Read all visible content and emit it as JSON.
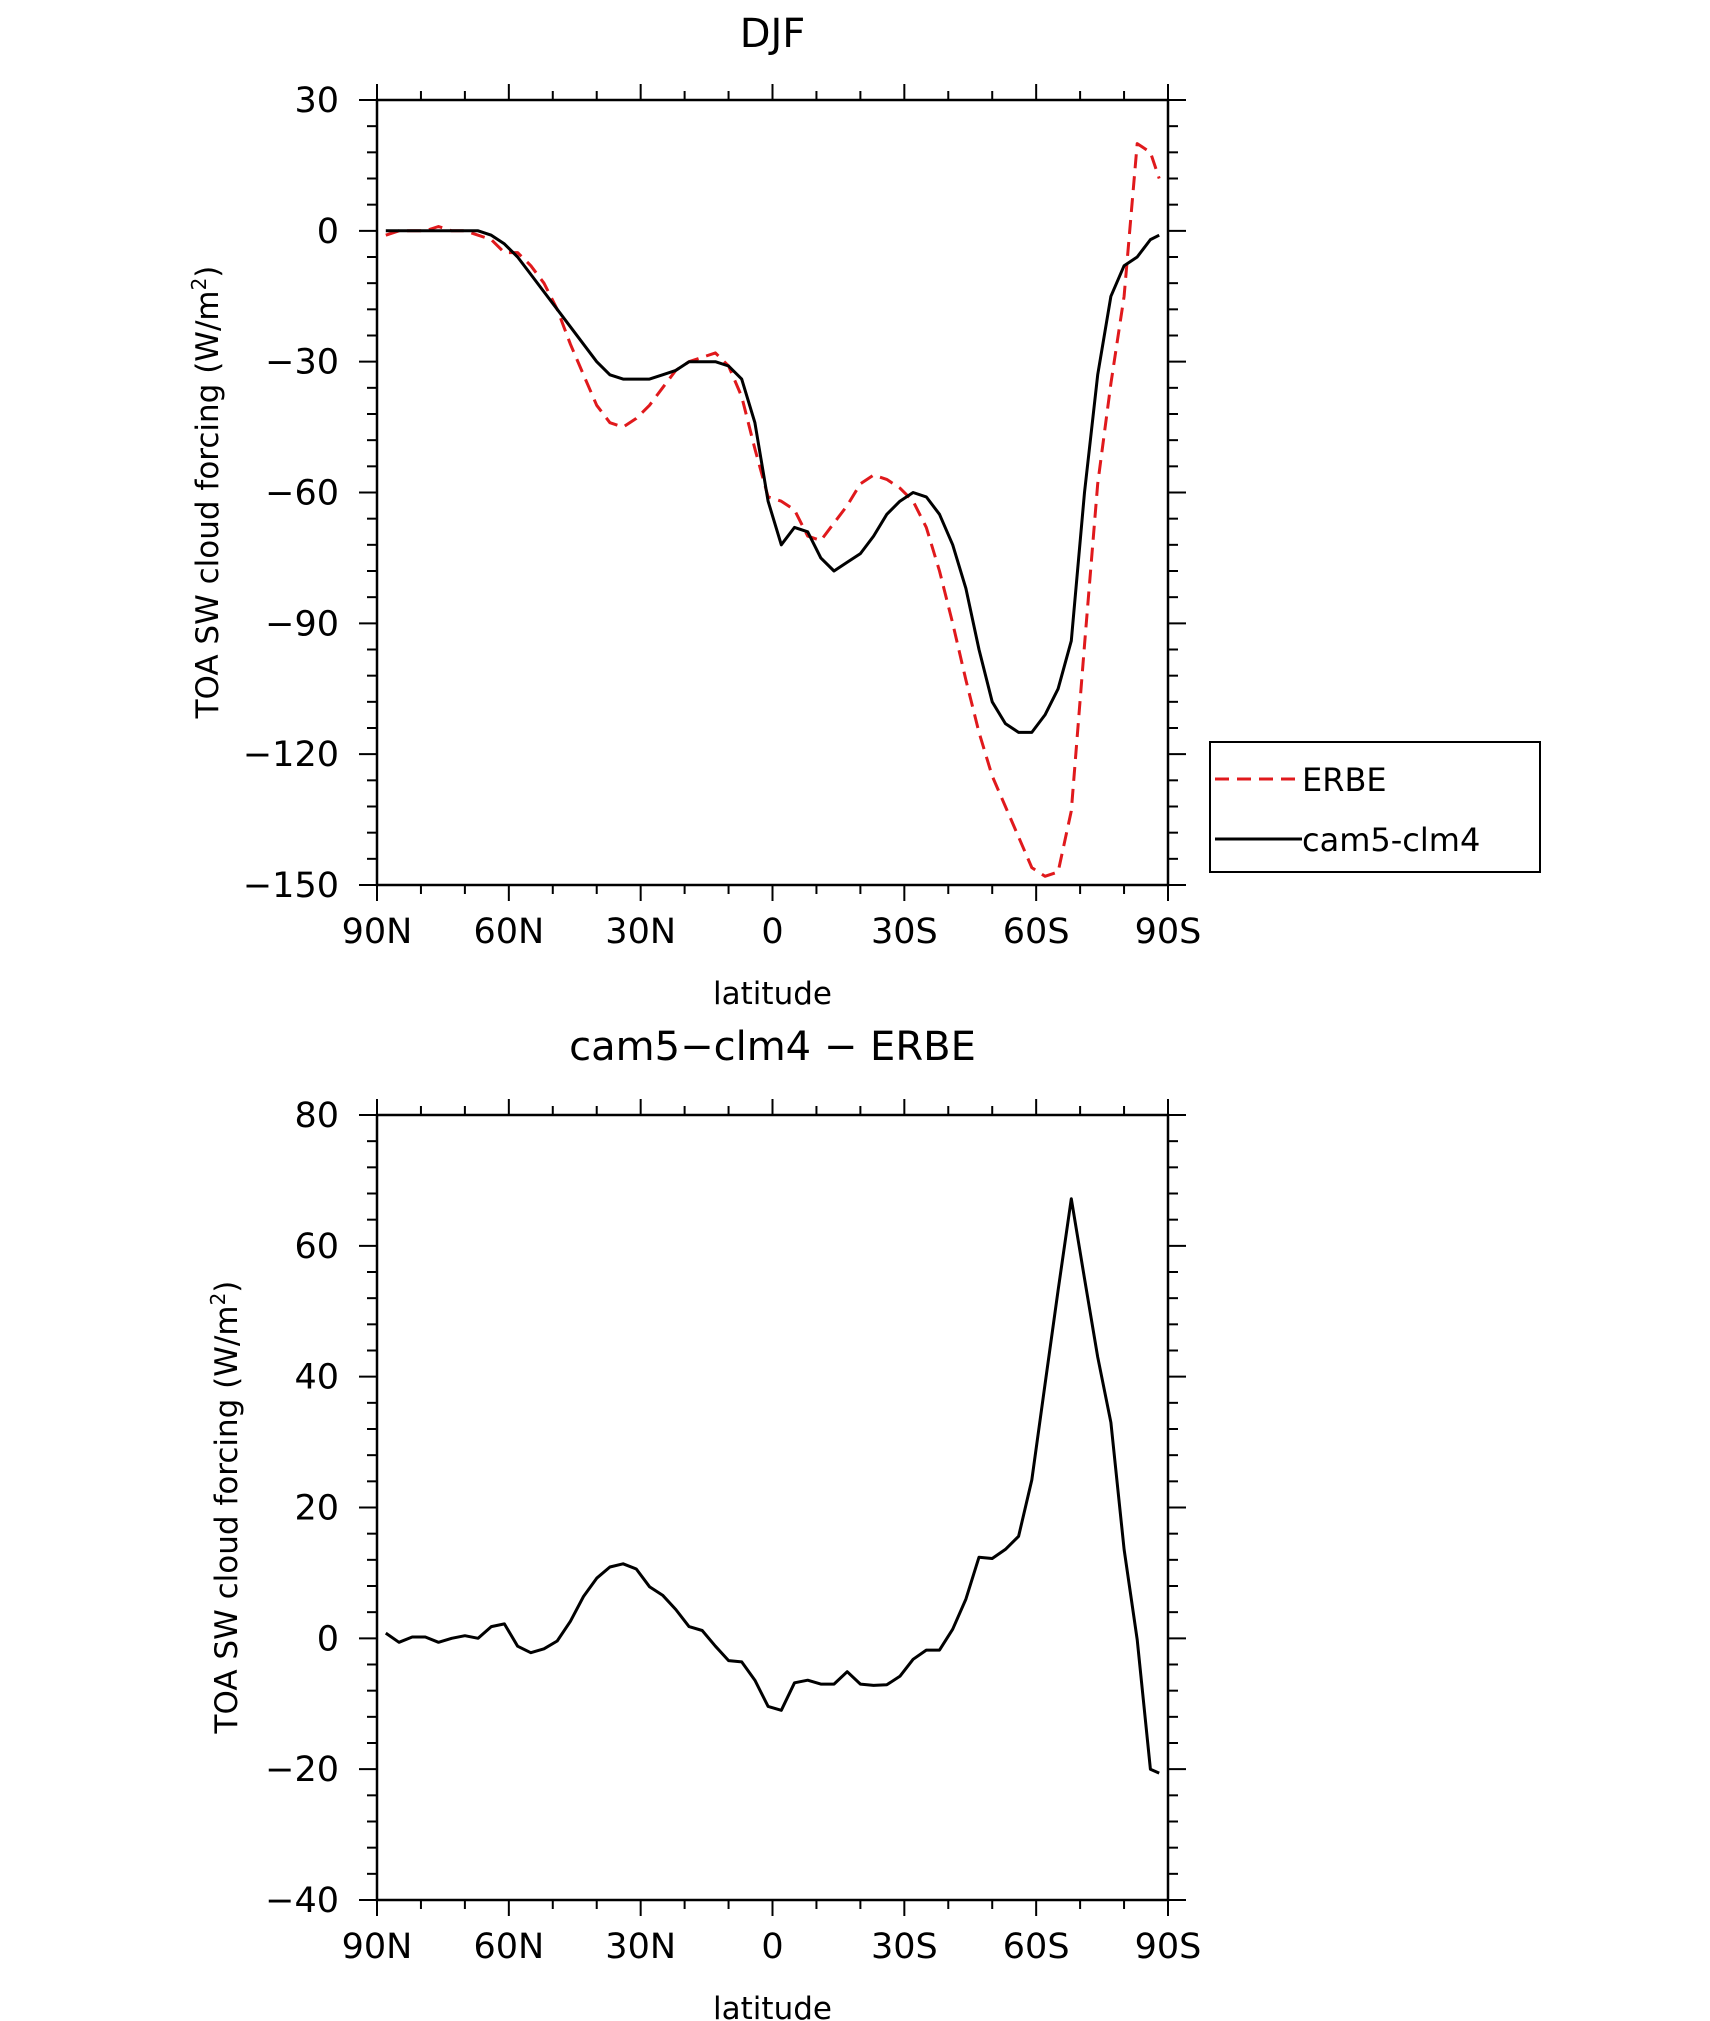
{
  "chart_data": [
    {
      "type": "line",
      "title": "DJF",
      "xlabel": "latitude",
      "ylabel": "TOA SW cloud forcing (W/m²)",
      "ylabel_parts": [
        "TOA SW cloud forcing (W/m",
        "2",
        ")"
      ],
      "x_ticks": [
        {
          "value": 90,
          "label": "90N"
        },
        {
          "value": 60,
          "label": "60N"
        },
        {
          "value": 30,
          "label": "30N"
        },
        {
          "value": 0,
          "label": "0"
        },
        {
          "value": -30,
          "label": "30S"
        },
        {
          "value": -60,
          "label": "60S"
        },
        {
          "value": -90,
          "label": "90S"
        }
      ],
      "y_ticks": [
        {
          "value": 30,
          "label": "30"
        },
        {
          "value": 0,
          "label": "0"
        },
        {
          "value": -30,
          "label": "−30"
        },
        {
          "value": -60,
          "label": "−60"
        },
        {
          "value": -90,
          "label": "−90"
        },
        {
          "value": -120,
          "label": "−120"
        },
        {
          "value": -150,
          "label": "−150"
        }
      ],
      "xlim": [
        90,
        -90
      ],
      "ylim": [
        -150,
        30
      ],
      "legend": {
        "position": "right"
      },
      "series": [
        {
          "name": "ERBE",
          "color": "#e0191c",
          "dash": "dashed",
          "x": [
            88,
            85,
            82,
            79,
            76,
            73,
            70,
            67,
            64,
            61,
            58,
            55,
            52,
            49,
            46,
            43,
            40,
            37,
            34,
            31,
            28,
            25,
            22,
            19,
            16,
            13,
            10,
            7,
            4,
            1,
            -2,
            -5,
            -8,
            -11,
            -14,
            -17,
            -20,
            -23,
            -26,
            -29,
            -32,
            -35,
            -38,
            -41,
            -44,
            -47,
            -50,
            -53,
            -56,
            -59,
            -62,
            -65,
            -68,
            -71,
            -74,
            -77,
            -80,
            -83,
            -86,
            -88
          ],
          "values": [
            -1,
            0,
            0,
            0,
            1,
            0,
            0,
            -1,
            -2,
            -5,
            -5,
            -8,
            -12,
            -18,
            -26,
            -33,
            -40,
            -44,
            -45,
            -43,
            -40,
            -36,
            -32,
            -30,
            -29,
            -28,
            -31,
            -38,
            -50,
            -61,
            -62,
            -64,
            -70,
            -71,
            -67,
            -63,
            -58,
            -56,
            -57,
            -59,
            -62,
            -68,
            -78,
            -90,
            -103,
            -115,
            -125,
            -132,
            -139,
            -146,
            -148,
            -147,
            -133,
            -95,
            -58,
            -35,
            -15,
            20,
            18,
            12
          ]
        },
        {
          "name": "cam5-clm4",
          "color": "#000000",
          "dash": "solid",
          "x": [
            88,
            85,
            82,
            79,
            76,
            73,
            70,
            67,
            64,
            61,
            58,
            55,
            52,
            49,
            46,
            43,
            40,
            37,
            34,
            31,
            28,
            25,
            22,
            19,
            16,
            13,
            10,
            7,
            4,
            1,
            -2,
            -5,
            -8,
            -11,
            -14,
            -17,
            -20,
            -23,
            -26,
            -29,
            -32,
            -35,
            -38,
            -41,
            -44,
            -47,
            -50,
            -53,
            -56,
            -59,
            -62,
            -65,
            -68,
            -71,
            -74,
            -77,
            -80,
            -83,
            -86,
            -88
          ],
          "values": [
            0,
            0,
            0,
            0,
            0,
            0,
            0,
            0,
            -1,
            -3,
            -6,
            -10,
            -14,
            -18,
            -22,
            -26,
            -30,
            -33,
            -34,
            -34,
            -34,
            -33,
            -32,
            -30,
            -30,
            -30,
            -31,
            -34,
            -44,
            -62,
            -72,
            -68,
            -69,
            -75,
            -78,
            -76,
            -74,
            -70,
            -65,
            -62,
            -60,
            -61,
            -65,
            -72,
            -82,
            -96,
            -108,
            -113,
            -115,
            -115,
            -111,
            -105,
            -94,
            -60,
            -33,
            -15,
            -8,
            -6,
            -2,
            -1
          ]
        }
      ]
    },
    {
      "type": "line",
      "title": "cam5−clm4 − ERBE",
      "xlabel": "latitude",
      "ylabel": "TOA SW cloud forcing (W/m²)",
      "ylabel_parts": [
        "TOA SW cloud forcing (W/m",
        "2",
        ")"
      ],
      "x_ticks": [
        {
          "value": 90,
          "label": "90N"
        },
        {
          "value": 60,
          "label": "60N"
        },
        {
          "value": 30,
          "label": "30N"
        },
        {
          "value": 0,
          "label": "0"
        },
        {
          "value": -30,
          "label": "30S"
        },
        {
          "value": -60,
          "label": "60S"
        },
        {
          "value": -90,
          "label": "90S"
        }
      ],
      "y_ticks": [
        {
          "value": 80,
          "label": "80"
        },
        {
          "value": 60,
          "label": "60"
        },
        {
          "value": 40,
          "label": "40"
        },
        {
          "value": 20,
          "label": "20"
        },
        {
          "value": 0,
          "label": "0"
        },
        {
          "value": -20,
          "label": "−20"
        },
        {
          "value": -40,
          "label": "−40"
        }
      ],
      "xlim": [
        90,
        -90
      ],
      "ylim": [
        -40,
        80
      ],
      "series": [
        {
          "name": "",
          "color": "#000000",
          "dash": "solid",
          "x": [
            88,
            85,
            82,
            79,
            76,
            73,
            70,
            67,
            64,
            61,
            58,
            55,
            52,
            49,
            46,
            43,
            40,
            37,
            34,
            31,
            28,
            25,
            22,
            19,
            16,
            13,
            10,
            7,
            4,
            1,
            -2,
            -5,
            -8,
            -11,
            -14,
            -17,
            -20,
            -23,
            -26,
            -29,
            -32,
            -35,
            -38,
            -41,
            -44,
            -47,
            -50,
            -53,
            -56,
            -59,
            -62,
            -65,
            -68,
            -71,
            -74,
            -77,
            -80,
            -83,
            -86,
            -88
          ],
          "values": [
            0.8,
            -0.6,
            0.2,
            0.2,
            -0.6,
            0.0,
            0.4,
            0.0,
            1.8,
            2.2,
            -1.2,
            -2.2,
            -1.6,
            -0.4,
            2.6,
            6.4,
            9.2,
            10.9,
            11.4,
            10.6,
            7.9,
            6.6,
            4.4,
            1.8,
            1.2,
            -1.2,
            -3.4,
            -3.6,
            -6.4,
            -10.4,
            -11.0,
            -6.8,
            -6.4,
            -7.0,
            -7.0,
            -5.1,
            -7.0,
            -7.2,
            -7.1,
            -5.8,
            -3.2,
            -1.8,
            -1.8,
            1.4,
            6.0,
            12.4,
            12.2,
            13.6,
            15.6,
            24.2,
            38.8,
            53.2,
            67.2,
            55.0,
            43.0,
            33.0,
            13.6,
            -0.2,
            -20.0,
            -20.6
          ]
        }
      ]
    }
  ]
}
